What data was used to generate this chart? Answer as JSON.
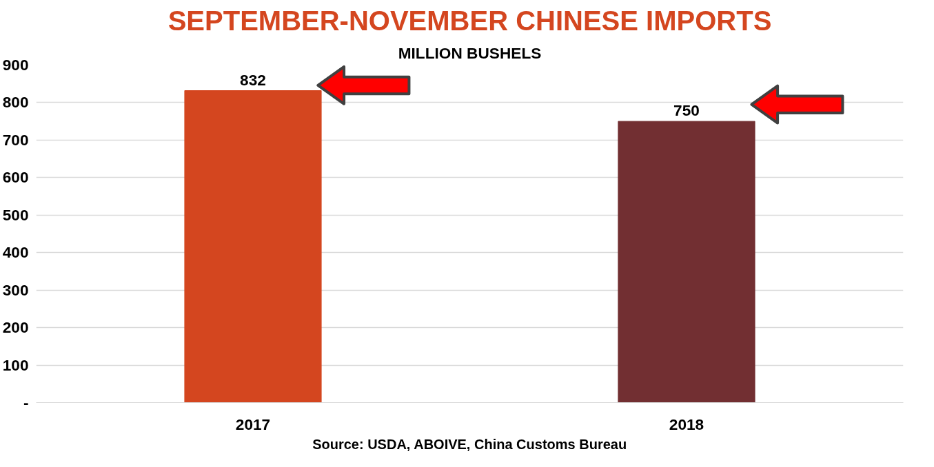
{
  "chart_data": {
    "type": "bar",
    "title": "SEPTEMBER-NOVEMBER CHINESE IMPORTS",
    "subtitle": "MILLION BUSHELS",
    "categories": [
      "2017",
      "2018"
    ],
    "values": [
      832,
      750
    ],
    "colors": [
      "#d4461f",
      "#722f32"
    ],
    "ylim": [
      0,
      900
    ],
    "yticks": [
      {
        "value": 0,
        "label": "-"
      },
      100,
      200,
      300,
      400,
      500,
      600,
      700,
      800,
      900
    ],
    "grid": "y",
    "data_labels": true,
    "annotations": [
      "Source: USDA, ABOIVE, China Customs Bureau"
    ]
  }
}
